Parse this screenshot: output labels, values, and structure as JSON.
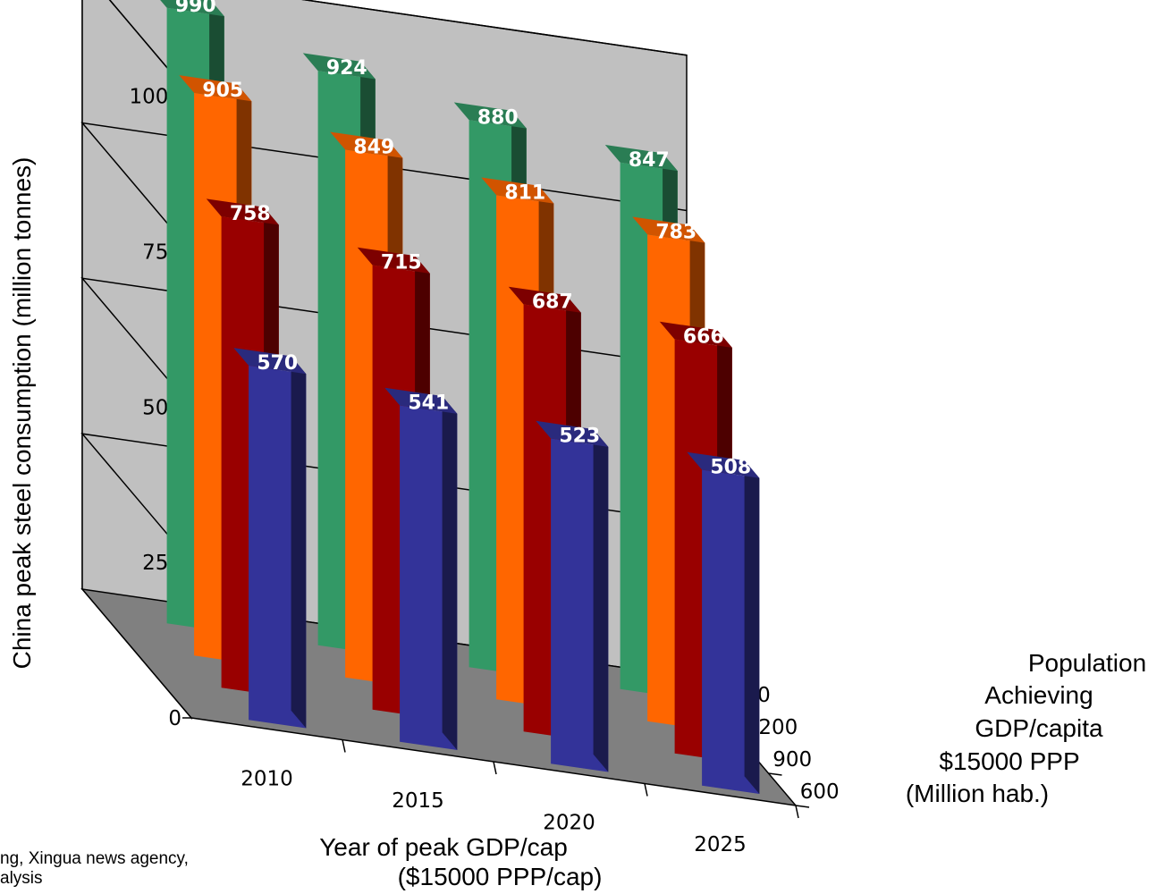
{
  "chart_data": {
    "type": "bar",
    "subtype": "3d-clustered-column",
    "categories": [
      "2010",
      "2015",
      "2020",
      "2025"
    ],
    "series": [
      {
        "name": "600",
        "values": [
          570,
          541,
          523,
          508
        ],
        "color": "#333399"
      },
      {
        "name": "900",
        "values": [
          758,
          715,
          687,
          666
        ],
        "color": "#990000"
      },
      {
        "name": "1200",
        "values": [
          905,
          849,
          811,
          783
        ],
        "color": "#ff6600"
      },
      {
        "name": "1400",
        "values": [
          990,
          924,
          880,
          847
        ],
        "color": "#339966"
      }
    ],
    "ylabel": "China peak steel consumption (million tonnes)",
    "xlabel_lines": [
      "Year of peak GDP/cap",
      "($15000 PPP/cap)"
    ],
    "zlabel_lines": [
      "Population",
      "Achieving",
      "GDP/capita",
      "$15000 PPP",
      "(Million hab.)"
    ],
    "ylim": [
      0,
      1000
    ],
    "yticks": [
      "0",
      "250",
      "500",
      "750",
      "1000"
    ],
    "depth_ticks": [
      "600",
      "900",
      "1200",
      "1400"
    ],
    "grid": true
  },
  "source_lines": [
    "ng, Xingua news agency,",
    "alysis"
  ]
}
